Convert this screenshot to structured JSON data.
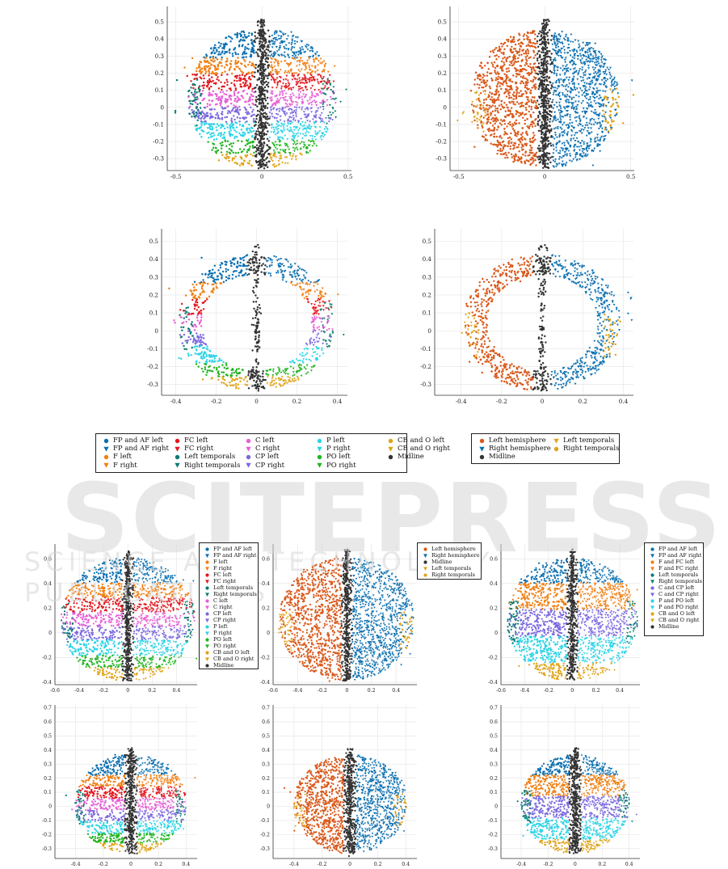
{
  "watermark": {
    "main": "SCITEPRESS",
    "sub": "SCIENCE AND TECHNOLOGY PUBLICATIONS"
  },
  "palettes": {
    "regions18": [
      {
        "name": "FP and AF left",
        "color": "#0a6fb0",
        "marker": "circle"
      },
      {
        "name": "FP and AF right",
        "color": "#0a6fb0",
        "marker": "triangle"
      },
      {
        "name": "F left",
        "color": "#f07f13",
        "marker": "circle"
      },
      {
        "name": "F right",
        "color": "#f07f13",
        "marker": "triangle"
      },
      {
        "name": "FC left",
        "color": "#e3171c",
        "marker": "circle"
      },
      {
        "name": "FC right",
        "color": "#e3171c",
        "marker": "triangle"
      },
      {
        "name": "Left temporals",
        "color": "#0b7a73",
        "marker": "circle"
      },
      {
        "name": "Right temporals",
        "color": "#0b7a73",
        "marker": "triangle"
      },
      {
        "name": "C left",
        "color": "#e65fd6",
        "marker": "circle"
      },
      {
        "name": "C right",
        "color": "#e65fd6",
        "marker": "triangle"
      },
      {
        "name": "CP left",
        "color": "#7b68e0",
        "marker": "circle"
      },
      {
        "name": "CP right",
        "color": "#7b68e0",
        "marker": "triangle"
      },
      {
        "name": "P left",
        "color": "#2bd3e6",
        "marker": "circle"
      },
      {
        "name": "P right",
        "color": "#2bd3e6",
        "marker": "triangle"
      },
      {
        "name": "PO left",
        "color": "#20b41e",
        "marker": "circle"
      },
      {
        "name": "PO right",
        "color": "#20b41e",
        "marker": "triangle"
      },
      {
        "name": "CB and O left",
        "color": "#e0a317",
        "marker": "circle"
      },
      {
        "name": "CB and O right",
        "color": "#e0a317",
        "marker": "triangle"
      },
      {
        "name": "Midline",
        "color": "#333333",
        "marker": "circle"
      }
    ],
    "hemi": [
      {
        "name": "Left hemisphere",
        "color": "#d9591b",
        "marker": "circle"
      },
      {
        "name": "Right hemisphere",
        "color": "#0a6fb0",
        "marker": "triangle"
      },
      {
        "name": "Midline",
        "color": "#333333",
        "marker": "circle"
      },
      {
        "name": "Left temporals",
        "color": "#e0a317",
        "marker": "triangle"
      },
      {
        "name": "Right temporals",
        "color": "#e0a317",
        "marker": "circle"
      }
    ],
    "regions14": [
      {
        "name": "FP and AF left",
        "color": "#0a6fb0",
        "marker": "circle"
      },
      {
        "name": "FP and AF right",
        "color": "#0a6fb0",
        "marker": "triangle"
      },
      {
        "name": "F and FC left",
        "color": "#f07f13",
        "marker": "circle"
      },
      {
        "name": "F and FC right",
        "color": "#f07f13",
        "marker": "triangle"
      },
      {
        "name": "Left temporals",
        "color": "#0b7a73",
        "marker": "circle"
      },
      {
        "name": "Right temporals",
        "color": "#0b7a73",
        "marker": "triangle"
      },
      {
        "name": "C and CP left",
        "color": "#7b68e0",
        "marker": "circle"
      },
      {
        "name": "C and CP right",
        "color": "#7b68e0",
        "marker": "triangle"
      },
      {
        "name": "P and PO left",
        "color": "#2bd3e6",
        "marker": "circle"
      },
      {
        "name": "P and PO right",
        "color": "#2bd3e6",
        "marker": "triangle"
      },
      {
        "name": "CB and O left",
        "color": "#e0a317",
        "marker": "circle"
      },
      {
        "name": "CB and O right",
        "color": "#e0a317",
        "marker": "triangle"
      },
      {
        "name": "Midline",
        "color": "#333333",
        "marker": "circle"
      }
    ]
  },
  "chart_data": [
    {
      "id": "top-left",
      "type": "scatter",
      "palette": "regions18",
      "xlim": [
        -0.55,
        0.52
      ],
      "ylim": [
        -0.37,
        0.59
      ],
      "xticks": [
        -0.5,
        0,
        0.5
      ],
      "xtick_labels": [
        "-0.5",
        "0",
        "0.5"
      ],
      "yticks": [
        -0.3,
        -0.2,
        -0.1,
        0,
        0.1,
        0.2,
        0.3,
        0.4,
        0.5
      ],
      "ytick_labels": [
        "-0.3",
        "-0.2",
        "-0.1",
        "0",
        "0.1",
        "0.2",
        "0.3",
        "0.4",
        "0.5"
      ],
      "shape": {
        "rx": 0.47,
        "ry": 0.6,
        "cy": 0.06,
        "top": 0.45,
        "bottom": -0.35,
        "n": 2400,
        "ring": false
      },
      "grid": true
    },
    {
      "id": "top-right",
      "type": "scatter",
      "palette": "hemi",
      "xlim": [
        -0.55,
        0.52
      ],
      "ylim": [
        -0.37,
        0.59
      ],
      "xticks": [
        -0.5,
        0,
        0.5
      ],
      "xtick_labels": [
        "-0.5",
        "0",
        "0.5"
      ],
      "yticks": [
        -0.3,
        -0.2,
        -0.1,
        0,
        0.1,
        0.2,
        0.3,
        0.4,
        0.5
      ],
      "ytick_labels": [
        "-0.3",
        "-0.2",
        "-0.1",
        "0",
        "0.1",
        "0.2",
        "0.3",
        "0.4",
        "0.5"
      ],
      "shape": {
        "rx": 0.47,
        "ry": 0.6,
        "cy": 0.06,
        "top": 0.45,
        "bottom": -0.35,
        "n": 2400,
        "ring": false
      },
      "grid": true
    },
    {
      "id": "mid-left",
      "type": "scatter",
      "palette": "regions18",
      "xlim": [
        -0.47,
        0.45
      ],
      "ylim": [
        -0.36,
        0.57
      ],
      "xticks": [
        -0.4,
        -0.2,
        0,
        0.2,
        0.4
      ],
      "xtick_labels": [
        "-0.4",
        "-0.2",
        "0",
        "0.2",
        "0.4"
      ],
      "yticks": [
        -0.3,
        -0.2,
        -0.1,
        0,
        0.1,
        0.2,
        0.3,
        0.4,
        0.5
      ],
      "ytick_labels": [
        "-0.3",
        "-0.2",
        "-0.1",
        "0",
        "0.1",
        "0.2",
        "0.3",
        "0.4",
        "0.5"
      ],
      "shape": {
        "rx": 0.42,
        "ry": 0.62,
        "cy": 0.05,
        "top": 0.42,
        "bottom": -0.33,
        "n": 1100,
        "ring": true
      },
      "grid": true
    },
    {
      "id": "mid-right",
      "type": "scatter",
      "palette": "hemi",
      "xlim": [
        -0.53,
        0.45
      ],
      "ylim": [
        -0.36,
        0.57
      ],
      "xticks": [
        -0.4,
        -0.2,
        0,
        0.2,
        0.4
      ],
      "xtick_labels": [
        "-0.4",
        "-0.2",
        "0",
        "0.2",
        "0.4"
      ],
      "yticks": [
        -0.3,
        -0.2,
        -0.1,
        0,
        0.1,
        0.2,
        0.3,
        0.4,
        0.5
      ],
      "ytick_labels": [
        "-0.3",
        "-0.2",
        "-0.1",
        "0",
        "0.1",
        "0.2",
        "0.3",
        "0.4",
        "0.5"
      ],
      "shape": {
        "rx": 0.42,
        "ry": 0.62,
        "cy": 0.05,
        "top": 0.42,
        "bottom": -0.33,
        "n": 1100,
        "ring": true
      },
      "grid": true
    },
    {
      "id": "b1",
      "type": "scatter",
      "palette": "regions18",
      "xlim": [
        -0.6,
        0.57
      ],
      "ylim": [
        -0.42,
        0.72
      ],
      "xticks": [
        -0.6,
        -0.4,
        -0.2,
        0,
        0.2,
        0.4
      ],
      "xtick_labels": [
        "-0.6",
        "-0.4",
        "-0.2",
        "0",
        "0.2",
        "0.4"
      ],
      "yticks": [
        -0.4,
        -0.2,
        0,
        0.2,
        0.4,
        0.6
      ],
      "ytick_labels": [
        "-0.4",
        "-0.2",
        "0",
        "0.2",
        "0.4",
        "0.6"
      ],
      "shape": {
        "rx": 0.6,
        "ry": 0.7,
        "cy": 0.12,
        "top": 0.6,
        "bottom": -0.38,
        "n": 2400,
        "ring": false
      },
      "grid": true
    },
    {
      "id": "b2",
      "type": "scatter",
      "palette": "hemi",
      "xlim": [
        -0.6,
        0.57
      ],
      "ylim": [
        -0.42,
        0.72
      ],
      "xticks": [
        -0.6,
        -0.4,
        -0.2,
        0,
        0.2,
        0.4
      ],
      "xtick_labels": [
        "-0.6",
        "-0.4",
        "-0.2",
        "0",
        "0.2",
        "0.4"
      ],
      "yticks": [
        -0.4,
        -0.2,
        0,
        0.2,
        0.4,
        0.6
      ],
      "ytick_labels": [
        "-0.4",
        "-0.2",
        "0",
        "0.2",
        "0.4",
        "0.6"
      ],
      "shape": {
        "rx": 0.6,
        "ry": 0.7,
        "cy": 0.12,
        "top": 0.6,
        "bottom": -0.38,
        "n": 2400,
        "ring": false
      },
      "grid": true
    },
    {
      "id": "b3",
      "type": "scatter",
      "palette": "regions14",
      "xlim": [
        -0.6,
        0.57
      ],
      "ylim": [
        -0.42,
        0.72
      ],
      "xticks": [
        -0.6,
        -0.4,
        -0.2,
        0,
        0.2,
        0.4
      ],
      "xtick_labels": [
        "-0.6",
        "-0.4",
        "-0.2",
        "0",
        "0.2",
        "0.4"
      ],
      "yticks": [
        -0.4,
        -0.2,
        0,
        0.2,
        0.4,
        0.6
      ],
      "ytick_labels": [
        "-0.4",
        "-0.2",
        "0",
        "0.2",
        "0.4",
        "0.6"
      ],
      "shape": {
        "rx": 0.6,
        "ry": 0.7,
        "cy": 0.12,
        "top": 0.6,
        "bottom": -0.38,
        "n": 2400,
        "ring": false
      },
      "grid": true
    },
    {
      "id": "b4",
      "type": "scatter",
      "palette": "regions18",
      "xlim": [
        -0.55,
        0.48
      ],
      "ylim": [
        -0.37,
        0.72
      ],
      "xticks": [
        -0.4,
        -0.2,
        0,
        0.2,
        0.4
      ],
      "xtick_labels": [
        "-0.4",
        "-0.2",
        "0",
        "0.2",
        "0.4"
      ],
      "yticks": [
        -0.3,
        -0.2,
        -0.1,
        0,
        0.1,
        0.2,
        0.3,
        0.4,
        0.5,
        0.6,
        0.7
      ],
      "ytick_labels": [
        "-0.3",
        "-0.2",
        "-0.1",
        "0",
        "0.1",
        "0.2",
        "0.3",
        "0.4",
        "0.5",
        "0.6",
        "0.7"
      ],
      "shape": {
        "rx": 0.44,
        "ry": 0.58,
        "cy": 0.04,
        "top": 0.36,
        "bottom": -0.33,
        "n": 2000,
        "ring": false
      },
      "grid": true
    },
    {
      "id": "b5",
      "type": "scatter",
      "palette": "hemi",
      "xlim": [
        -0.55,
        0.48
      ],
      "ylim": [
        -0.37,
        0.72
      ],
      "xticks": [
        -0.4,
        -0.2,
        0,
        0.2,
        0.4
      ],
      "xtick_labels": [
        "-0.4",
        "-0.2",
        "0",
        "0.2",
        "0.4"
      ],
      "yticks": [
        -0.3,
        -0.2,
        -0.1,
        0,
        0.1,
        0.2,
        0.3,
        0.4,
        0.5,
        0.6,
        0.7
      ],
      "ytick_labels": [
        "-0.3",
        "-0.2",
        "-0.1",
        "0",
        "0.1",
        "0.2",
        "0.3",
        "0.4",
        "0.5",
        "0.6",
        "0.7"
      ],
      "shape": {
        "rx": 0.44,
        "ry": 0.58,
        "cy": 0.04,
        "top": 0.36,
        "bottom": -0.33,
        "n": 2000,
        "ring": false
      },
      "grid": true
    },
    {
      "id": "b6",
      "type": "scatter",
      "palette": "regions14",
      "xlim": [
        -0.55,
        0.48
      ],
      "ylim": [
        -0.37,
        0.72
      ],
      "xticks": [
        -0.4,
        -0.2,
        0,
        0.2,
        0.4
      ],
      "xtick_labels": [
        "-0.4",
        "-0.2",
        "0",
        "0.2",
        "0.4"
      ],
      "yticks": [
        -0.3,
        -0.2,
        -0.1,
        0,
        0.1,
        0.2,
        0.3,
        0.4,
        0.5,
        0.6,
        0.7
      ],
      "ytick_labels": [
        "-0.3",
        "-0.2",
        "-0.1",
        "0",
        "0.1",
        "0.2",
        "0.3",
        "0.4",
        "0.5",
        "0.6",
        "0.7"
      ],
      "shape": {
        "rx": 0.44,
        "ry": 0.58,
        "cy": 0.04,
        "top": 0.36,
        "bottom": -0.33,
        "n": 2000,
        "ring": false
      },
      "grid": true
    }
  ],
  "legends": [
    {
      "id": "legend-top-left",
      "palette": "regions18",
      "layout": "grid",
      "order": "column",
      "rows": 4
    },
    {
      "id": "legend-top-right",
      "palette": "hemi",
      "layout": "grid",
      "order": "column",
      "rows": 3
    },
    {
      "id": "legend-b1",
      "palette": "regions18",
      "layout": "list"
    },
    {
      "id": "legend-b2",
      "palette": "hemi",
      "layout": "list"
    },
    {
      "id": "legend-b3",
      "palette": "regions14",
      "layout": "list"
    }
  ]
}
